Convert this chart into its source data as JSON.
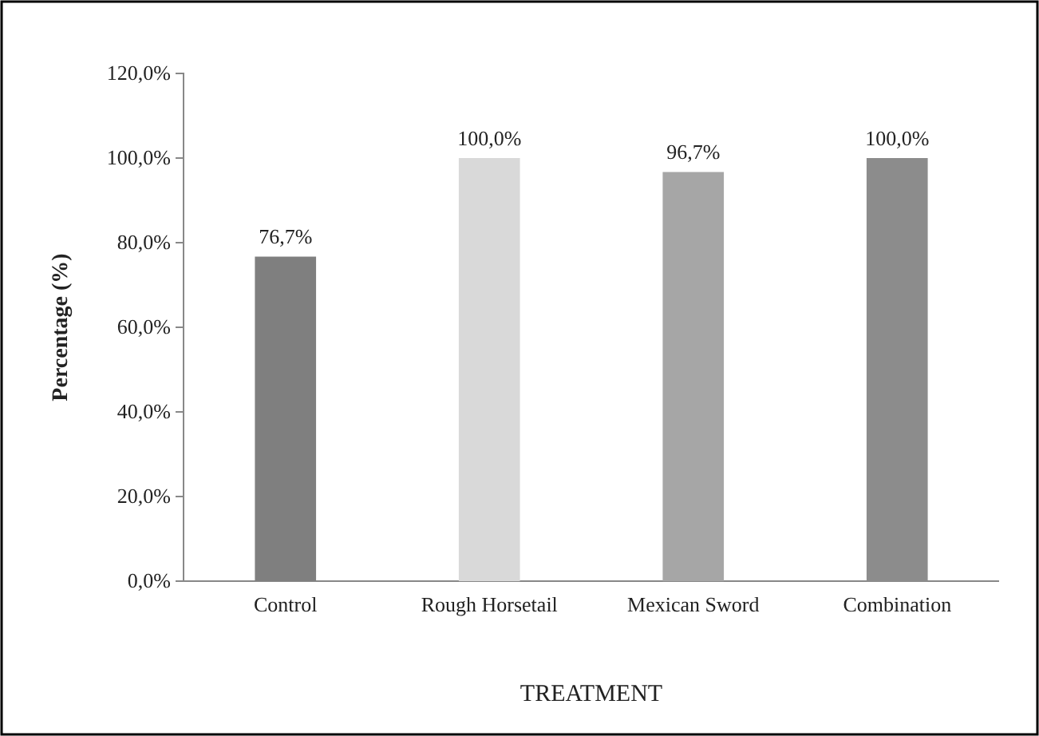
{
  "chart_data": {
    "type": "bar",
    "xlabel": "TREATMENT",
    "ylabel": "Percentage (%)",
    "categories": [
      "Control",
      "Rough Horsetail",
      "Mexican Sword",
      "Combination"
    ],
    "values": [
      76.7,
      100,
      96.7,
      100
    ],
    "value_labels": [
      "76,7%",
      "100,0%",
      "96,7%",
      "100,0%"
    ],
    "colors": [
      "#7f7f7f",
      "#d9d9d9",
      "#a6a6a6",
      "#8c8c8c"
    ],
    "ylim": [
      0,
      120
    ],
    "yticks": [
      {
        "value": 0,
        "label": "0,0%"
      },
      {
        "value": 20,
        "label": "20,0%"
      },
      {
        "value": 40,
        "label": "40,0%"
      },
      {
        "value": 60,
        "label": "60,0%"
      },
      {
        "value": 80,
        "label": "80,0%"
      },
      {
        "value": 100,
        "label": "100,0%"
      },
      {
        "value": 120,
        "label": "120,0%"
      }
    ],
    "grid": false
  }
}
